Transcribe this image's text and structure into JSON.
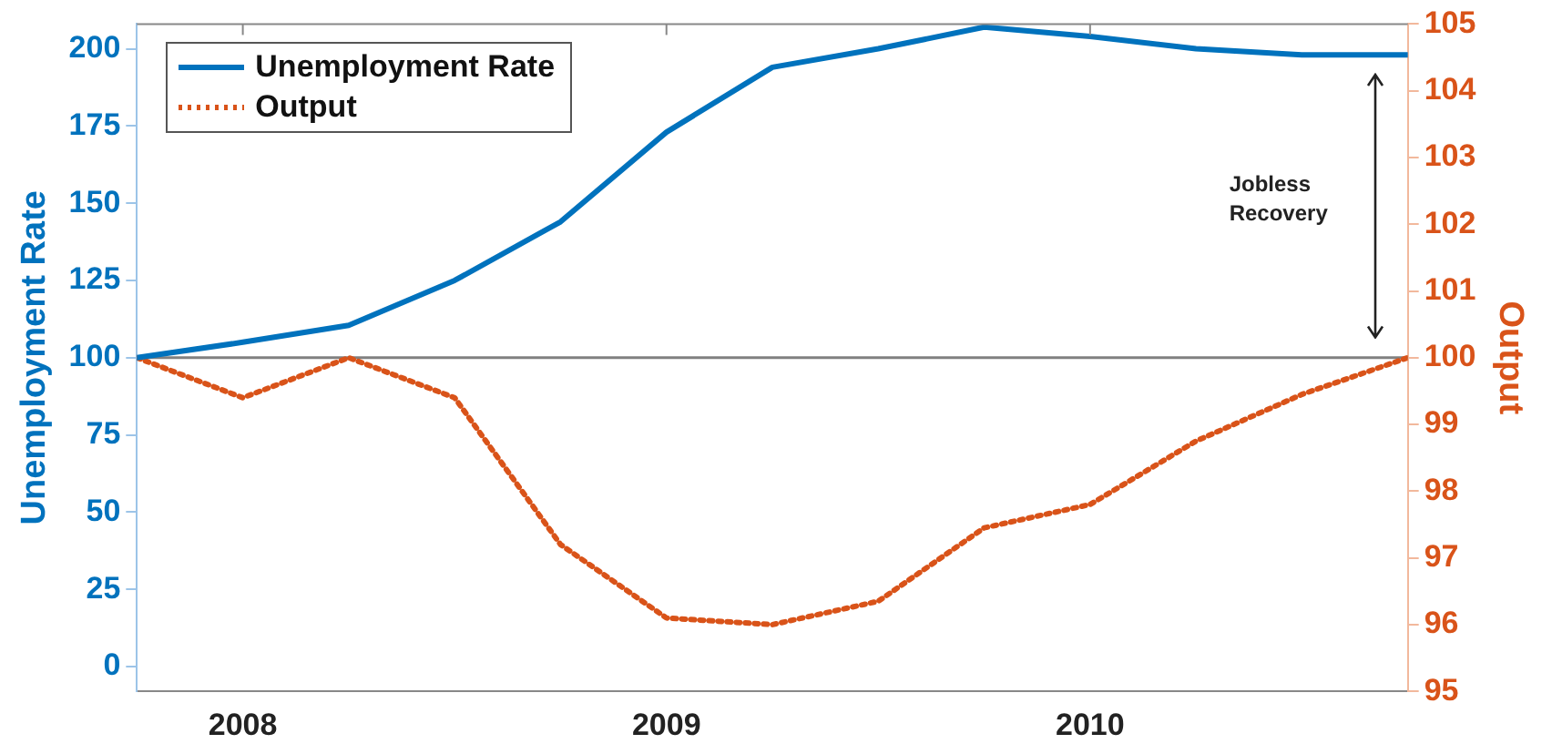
{
  "chart_data": {
    "type": "line",
    "x": [
      2007.75,
      2008,
      2008.25,
      2008.5,
      2008.75,
      2009,
      2009.25,
      2009.5,
      2009.75,
      2010,
      2010.25,
      2010.5,
      2010.75
    ],
    "xlim": [
      2007.75,
      2010.75
    ],
    "xticks": [
      2008,
      2009,
      2010
    ],
    "ylabel": "Unemployment Rate",
    "y2label": "Output",
    "ylim": [
      -8,
      208
    ],
    "yticks": [
      0,
      25,
      50,
      75,
      100,
      125,
      150,
      175,
      200
    ],
    "y2lim": [
      95,
      105
    ],
    "y2ticks": [
      95,
      96,
      97,
      98,
      99,
      100,
      101,
      102,
      103,
      104,
      105
    ],
    "series": [
      {
        "name": "Unemployment Rate",
        "color": "#0072bd",
        "line_style": "solid",
        "values": [
          100,
          105,
          110.5,
          125,
          144,
          173,
          194,
          200,
          207,
          204,
          200,
          198,
          198
        ]
      },
      {
        "name": "Output",
        "color": "#d95319",
        "line_style": "dotted",
        "axis": "y2",
        "values": [
          100,
          99.4,
          100,
          99.4,
          97.2,
          96.1,
          96.0,
          96.35,
          97.45,
          97.8,
          98.75,
          99.45,
          100
        ]
      }
    ],
    "ref_lines": [
      {
        "axis": "y",
        "value": 100,
        "color": "#808080"
      }
    ],
    "annotations": [
      "Jobless Recovery"
    ],
    "legend": "top left",
    "grid": false,
    "marker": "none"
  }
}
